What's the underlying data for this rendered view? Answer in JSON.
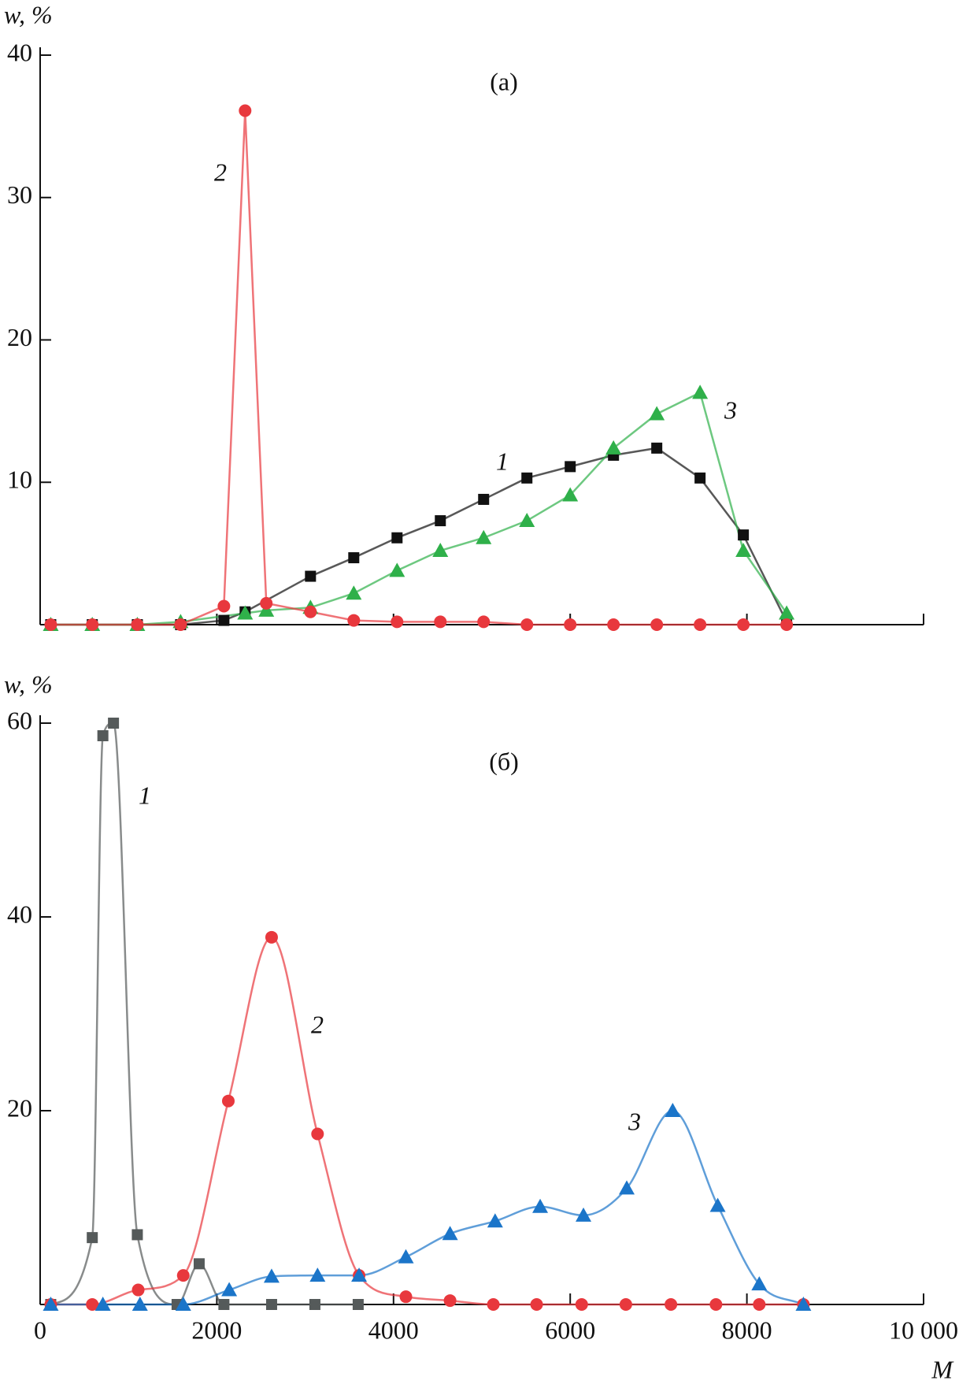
{
  "chart_data": [
    {
      "type": "line",
      "title": "(а)",
      "ylabel": "w, %",
      "xlim": [
        0,
        10000
      ],
      "ylim": [
        0,
        40
      ],
      "xticks": [
        2000,
        4000,
        6000,
        8000,
        10000
      ],
      "xtick_labels": false,
      "yticks": [
        10,
        20,
        30,
        40
      ],
      "smooth": false,
      "series": [
        {
          "name": "1",
          "color": "#111111",
          "marker": "square",
          "x": [
            120,
            590,
            1100,
            1590,
            2080,
            2320,
            3060,
            3550,
            4040,
            4530,
            5020,
            5510,
            6000,
            6490,
            6980,
            7470,
            7960,
            8450
          ],
          "values": [
            0,
            0,
            0,
            0,
            0.3,
            0.9,
            3.4,
            4.7,
            6.1,
            7.3,
            8.8,
            10.3,
            11.1,
            11.9,
            12.4,
            10.3,
            6.3,
            0.2
          ]
        },
        {
          "name": "3",
          "color": "#2fb04a",
          "marker": "triangle",
          "x": [
            120,
            590,
            1100,
            1590,
            2320,
            2560,
            3060,
            3550,
            4040,
            4530,
            5020,
            5510,
            6000,
            6490,
            6980,
            7470,
            7960,
            8450
          ],
          "values": [
            0,
            0,
            0,
            0.2,
            0.8,
            1.0,
            1.2,
            2.2,
            3.8,
            5.2,
            6.1,
            7.3,
            9.1,
            12.4,
            14.8,
            16.3,
            5.2,
            0.8
          ]
        },
        {
          "name": "2",
          "color": "#e8383d",
          "marker": "circle",
          "x": [
            120,
            590,
            1100,
            1590,
            2080,
            2320,
            2560,
            3060,
            3550,
            4040,
            4530,
            5020,
            5510,
            6000,
            6490,
            6980,
            7470,
            7960,
            8450
          ],
          "values": [
            0,
            0,
            0,
            0,
            1.3,
            36.1,
            1.5,
            0.9,
            0.3,
            0.2,
            0.2,
            0.2,
            0,
            0,
            0,
            0,
            0,
            0,
            0
          ]
        }
      ]
    },
    {
      "type": "line",
      "title": "(б)",
      "ylabel": "w, %",
      "xlabel": "M",
      "xlim": [
        0,
        10000
      ],
      "ylim": [
        0,
        60
      ],
      "xticks": [
        0,
        2000,
        4000,
        6000,
        8000,
        {
          "value": 10000,
          "label": "10 000"
        }
      ],
      "xtick_labels": true,
      "yticks": [
        20,
        40,
        60
      ],
      "smooth": true,
      "series": [
        {
          "name": "1",
          "color": "#555a5a",
          "marker": "square",
          "x": [
            120,
            590,
            710,
            830,
            1100,
            1550,
            1800,
            2080,
            2620,
            3110,
            3600
          ],
          "values": [
            0,
            6.9,
            58.7,
            60,
            7.2,
            0,
            4.2,
            0,
            0,
            0,
            0
          ]
        },
        {
          "name": "2",
          "color": "#e8383d",
          "marker": "circle",
          "x": [
            120,
            590,
            1110,
            1620,
            2130,
            2620,
            3140,
            3610,
            4140,
            4640,
            5130,
            5620,
            6130,
            6630,
            7140,
            7650,
            8140,
            8640
          ],
          "values": [
            0,
            0,
            1.5,
            3.0,
            21.0,
            37.9,
            17.6,
            3.0,
            0.8,
            0.4,
            0,
            0,
            0,
            0,
            0,
            0,
            0,
            0
          ]
        },
        {
          "name": "3",
          "color": "#1b75c9",
          "marker": "triangle",
          "x": [
            120,
            710,
            1130,
            1620,
            2140,
            2620,
            3140,
            3610,
            4140,
            4640,
            5150,
            5660,
            6150,
            6640,
            7160,
            7670,
            8140,
            8640
          ],
          "values": [
            0,
            0,
            0,
            0,
            1.5,
            2.9,
            3.0,
            3.0,
            4.9,
            7.3,
            8.6,
            10.1,
            9.2,
            12.0,
            20.0,
            10.2,
            2.1,
            0
          ]
        }
      ]
    }
  ]
}
